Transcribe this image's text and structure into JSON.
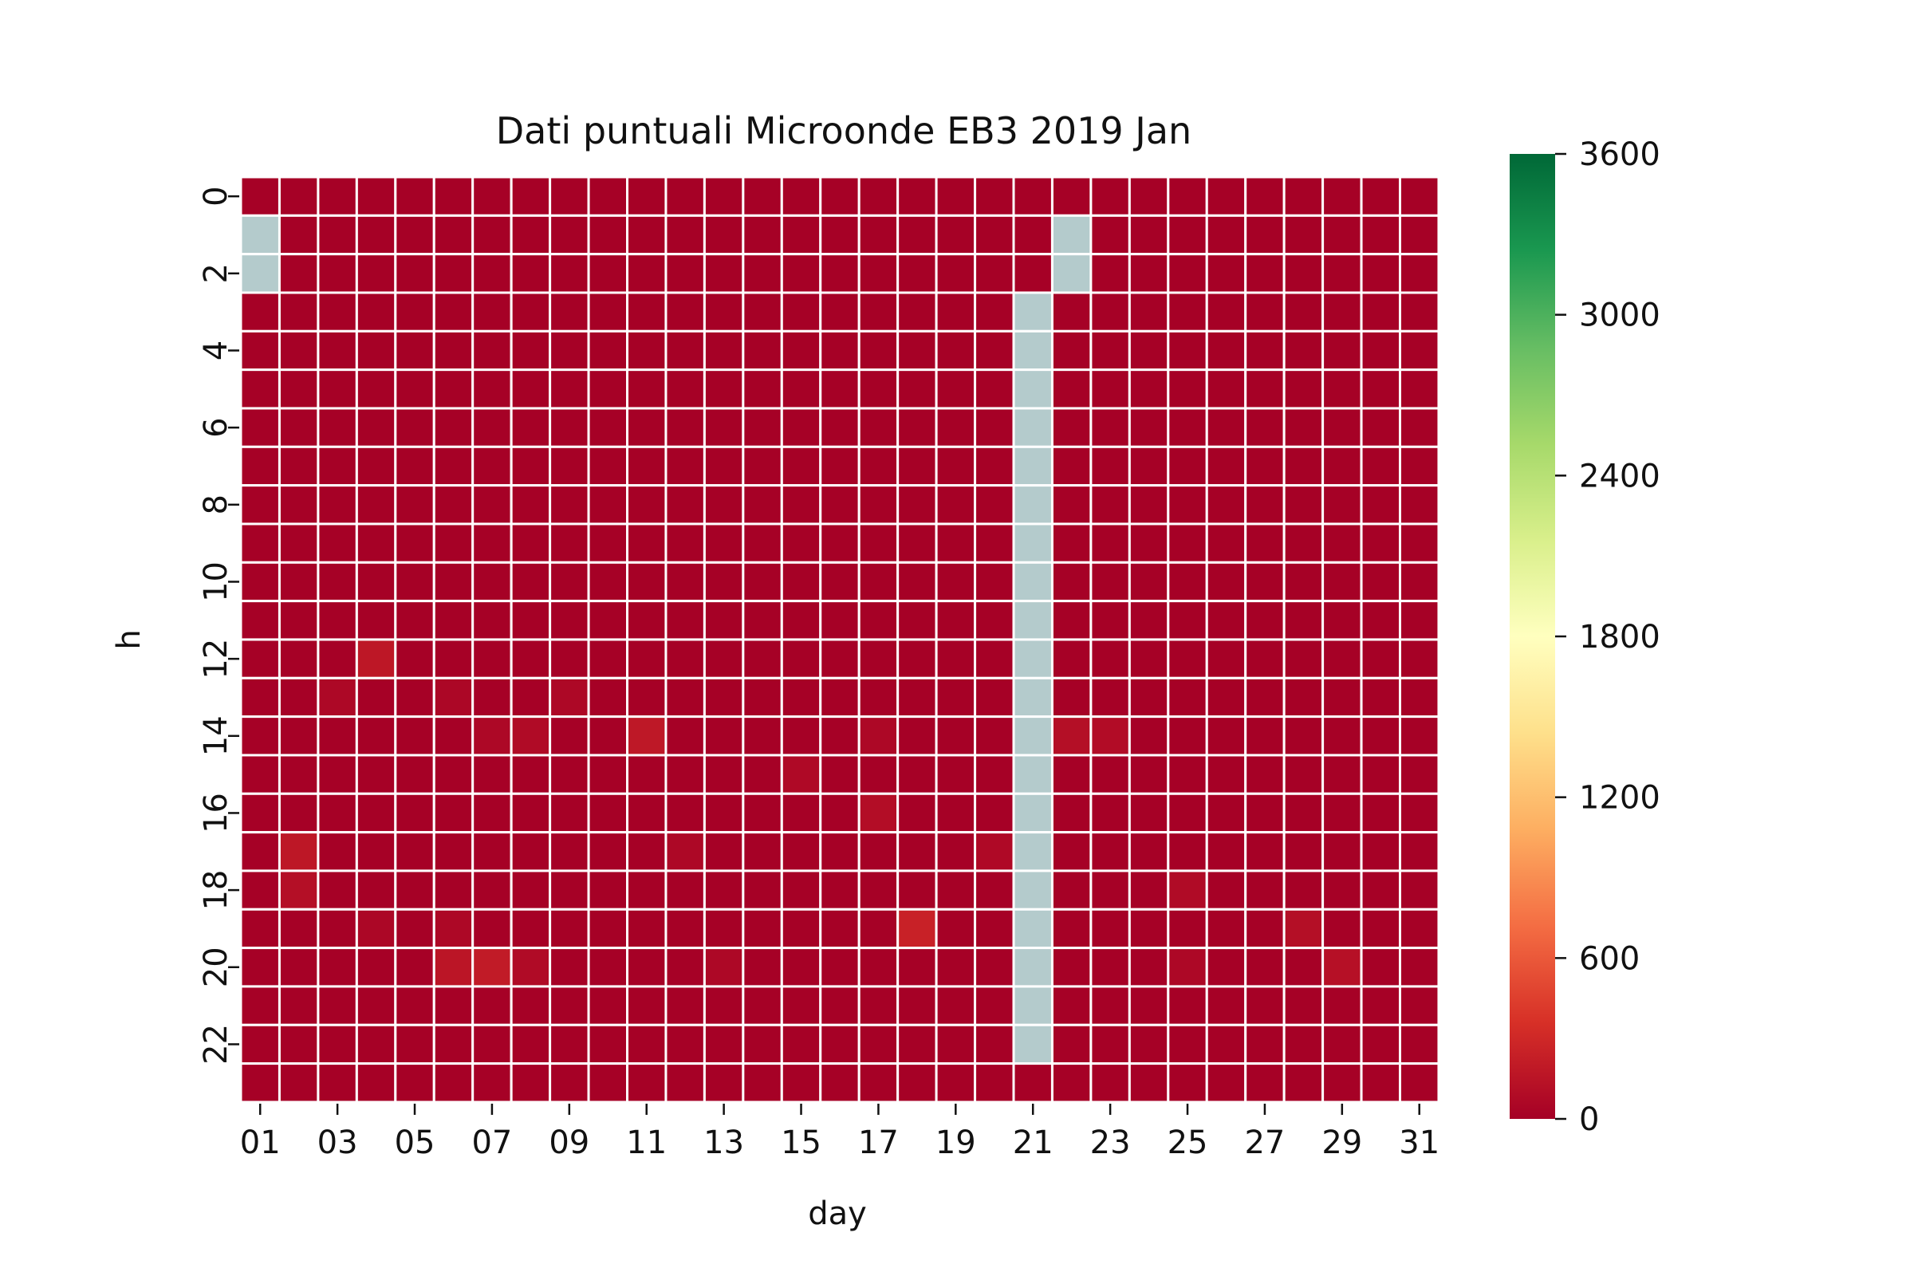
{
  "chart_data": {
    "type": "heatmap",
    "title": "Dati puntuali Microonde EB3 2019 Jan",
    "xlabel": "day",
    "ylabel": "h",
    "x_categories": [
      "01",
      "02",
      "03",
      "04",
      "05",
      "06",
      "07",
      "08",
      "09",
      "10",
      "11",
      "12",
      "13",
      "14",
      "15",
      "16",
      "17",
      "18",
      "19",
      "20",
      "21",
      "22",
      "23",
      "24",
      "25",
      "26",
      "27",
      "28",
      "29",
      "30",
      "31"
    ],
    "x_tick_labels": [
      "01",
      "03",
      "05",
      "07",
      "09",
      "11",
      "13",
      "15",
      "17",
      "19",
      "21",
      "23",
      "25",
      "27",
      "29",
      "31"
    ],
    "y_categories": [
      "0",
      "1",
      "2",
      "3",
      "4",
      "5",
      "6",
      "7",
      "8",
      "9",
      "10",
      "11",
      "12",
      "13",
      "14",
      "15",
      "16",
      "17",
      "18",
      "19",
      "20",
      "21",
      "22",
      "23"
    ],
    "y_tick_labels": [
      "0",
      "2",
      "4",
      "6",
      "8",
      "10",
      "12",
      "14",
      "16",
      "18",
      "20",
      "22"
    ],
    "colorbar": {
      "colormap": "RdYlGn",
      "vmin": 0,
      "vmax": 3600,
      "ticks": [
        "0",
        "600",
        "1200",
        "1800",
        "2400",
        "3000",
        "3600"
      ]
    },
    "missing_color": "#b4cbcc",
    "missing_cells": [
      {
        "day": "01",
        "h": 1
      },
      {
        "day": "01",
        "h": 2
      },
      {
        "day": "22",
        "h": 1
      },
      {
        "day": "22",
        "h": 2
      },
      {
        "day": "21",
        "h": 3
      },
      {
        "day": "21",
        "h": 4
      },
      {
        "day": "21",
        "h": 5
      },
      {
        "day": "21",
        "h": 6
      },
      {
        "day": "21",
        "h": 7
      },
      {
        "day": "21",
        "h": 8
      },
      {
        "day": "21",
        "h": 9
      },
      {
        "day": "21",
        "h": 10
      },
      {
        "day": "21",
        "h": 11
      },
      {
        "day": "21",
        "h": 12
      },
      {
        "day": "21",
        "h": 13
      },
      {
        "day": "21",
        "h": 14
      },
      {
        "day": "21",
        "h": 15
      },
      {
        "day": "21",
        "h": 16
      },
      {
        "day": "21",
        "h": 17
      },
      {
        "day": "21",
        "h": 18
      },
      {
        "day": "21",
        "h": 19
      },
      {
        "day": "21",
        "h": 20
      },
      {
        "day": "21",
        "h": 21
      },
      {
        "day": "21",
        "h": 22
      }
    ],
    "default_value": 10,
    "nonzero_cells": [
      {
        "day": "04",
        "h": 12,
        "value": 170
      },
      {
        "day": "03",
        "h": 13,
        "value": 60
      },
      {
        "day": "06",
        "h": 13,
        "value": 50
      },
      {
        "day": "09",
        "h": 13,
        "value": 60
      },
      {
        "day": "07",
        "h": 14,
        "value": 60
      },
      {
        "day": "08",
        "h": 14,
        "value": 80
      },
      {
        "day": "11",
        "h": 14,
        "value": 180
      },
      {
        "day": "17",
        "h": 14,
        "value": 60
      },
      {
        "day": "22",
        "h": 14,
        "value": 110
      },
      {
        "day": "23",
        "h": 14,
        "value": 90
      },
      {
        "day": "15",
        "h": 15,
        "value": 70
      },
      {
        "day": "17",
        "h": 16,
        "value": 100
      },
      {
        "day": "02",
        "h": 17,
        "value": 170
      },
      {
        "day": "12",
        "h": 17,
        "value": 60
      },
      {
        "day": "20",
        "h": 17,
        "value": 70
      },
      {
        "day": "02",
        "h": 18,
        "value": 110
      },
      {
        "day": "25",
        "h": 18,
        "value": 80
      },
      {
        "day": "04",
        "h": 19,
        "value": 50
      },
      {
        "day": "06",
        "h": 19,
        "value": 60
      },
      {
        "day": "18",
        "h": 19,
        "value": 250
      },
      {
        "day": "28",
        "h": 19,
        "value": 110
      },
      {
        "day": "06",
        "h": 20,
        "value": 160
      },
      {
        "day": "07",
        "h": 20,
        "value": 200
      },
      {
        "day": "08",
        "h": 20,
        "value": 80
      },
      {
        "day": "13",
        "h": 20,
        "value": 60
      },
      {
        "day": "25",
        "h": 20,
        "value": 60
      },
      {
        "day": "29",
        "h": 20,
        "value": 120
      }
    ]
  }
}
